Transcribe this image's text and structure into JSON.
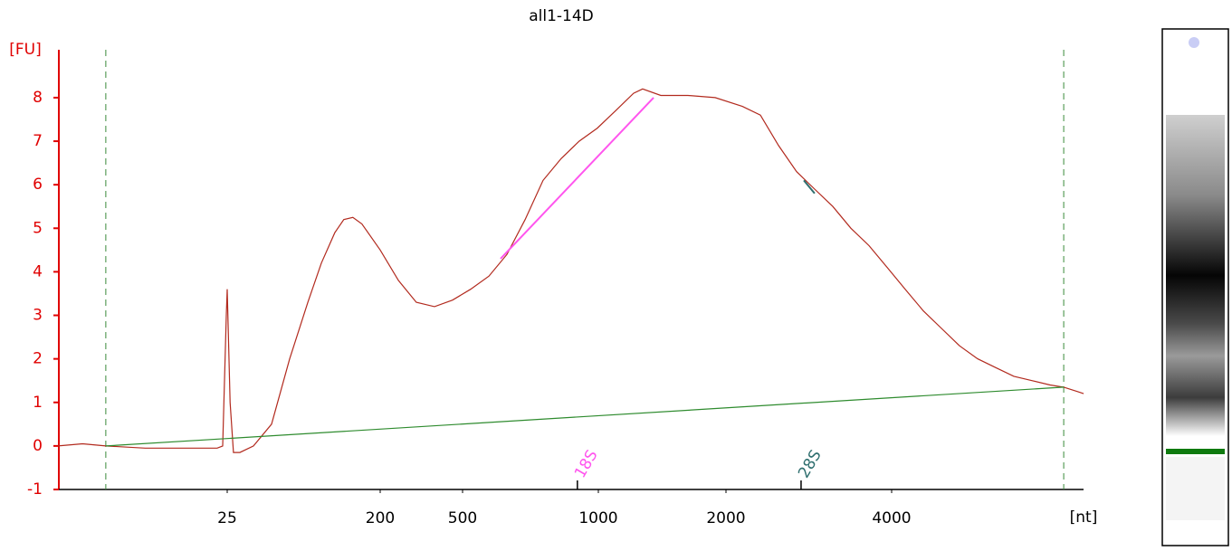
{
  "chart_data": {
    "type": "line",
    "title": "all1-14D",
    "y_label": "[FU]",
    "x_label": "[nt]",
    "ylim": [
      -1,
      9.1
    ],
    "yticks": [
      -1,
      0,
      1,
      2,
      3,
      4,
      5,
      6,
      7,
      8
    ],
    "xlim": [
      2.5,
      8932
    ],
    "xticks": [
      25,
      200,
      500,
      1000,
      2000,
      4000
    ],
    "axis_color": "#e00000",
    "series": [
      {
        "color": "#b22a1e",
        "x": [
          2.5,
          3.5,
          4.8,
          8.2,
          13.3,
          21.8,
          23.5,
          24.7,
          25,
          26,
          27.2,
          29.7,
          35.7,
          45.7,
          58.4,
          74.8,
          89.9,
          108,
          122,
          138,
          156,
          200,
          245,
          299,
          366,
          447,
          521,
          572,
          627,
          688,
          754,
          827,
          907,
          995,
          1098,
          1211,
          1272,
          1404,
          1627,
          1886,
          2142,
          2310,
          2492,
          2687,
          2898,
          3127,
          3373,
          3639,
          3926,
          4234,
          4568,
          4928,
          5315,
          5733,
          6184,
          6671,
          7195,
          7761,
          8218,
          8694,
          8932
        ],
        "values": [
          0,
          0.05,
          0,
          -0.05,
          -0.05,
          -0.05,
          0,
          3.0,
          3.6,
          1.0,
          -0.15,
          -0.15,
          0,
          0.5,
          2.0,
          3.3,
          4.2,
          4.9,
          5.2,
          5.25,
          5.1,
          4.5,
          3.8,
          3.3,
          3.2,
          3.35,
          3.6,
          3.9,
          4.4,
          5.2,
          6.1,
          6.6,
          7.0,
          7.3,
          7.7,
          8.1,
          8.2,
          8.05,
          8.05,
          8.0,
          7.8,
          7.6,
          6.9,
          6.3,
          5.9,
          5.5,
          5.0,
          4.6,
          4.1,
          3.6,
          3.1,
          2.7,
          2.3,
          2.0,
          1.8,
          1.6,
          1.5,
          1.4,
          1.35,
          1.25,
          1.2
        ]
      },
      {
        "color": "#2e8b2e",
        "x": [
          4.8,
          8218
        ],
        "values": [
          0,
          1.35
        ]
      }
    ],
    "markers": [
      4.8,
      8218
    ],
    "marker_color": "#3a8a3a",
    "peaks": [
      {
        "label": "18S",
        "x": 941,
        "color": "#ff55ee",
        "fit_x": [
          607,
          1350
        ],
        "fit_y": [
          4.3,
          8.0
        ]
      },
      {
        "label": "28S",
        "x": 2844,
        "color": "#2f6f6f",
        "fit_x": [
          2770,
          2898
        ],
        "fit_y": [
          6.1,
          5.8
        ]
      }
    ]
  }
}
